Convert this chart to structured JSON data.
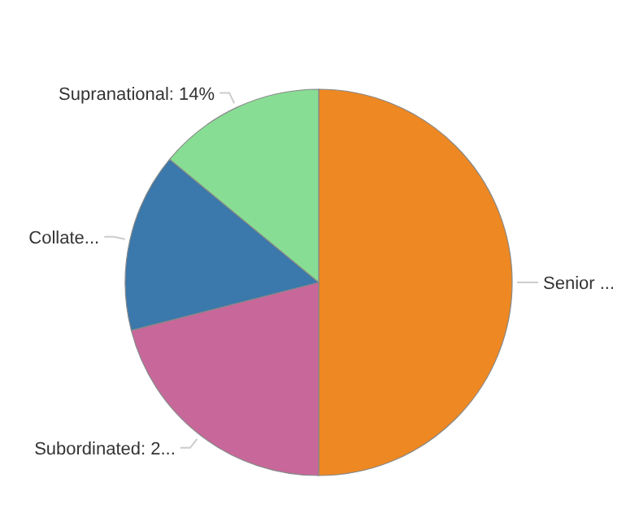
{
  "chart_data": {
    "type": "pie",
    "categories": [
      "Senior ...",
      "Subordinated: 2...",
      "Collate...",
      "Supranational: 14%"
    ],
    "values": [
      50,
      21,
      15,
      14
    ],
    "colors": [
      "#ee8822",
      "#c8679a",
      "#3b78ab",
      "#88dd94"
    ]
  }
}
